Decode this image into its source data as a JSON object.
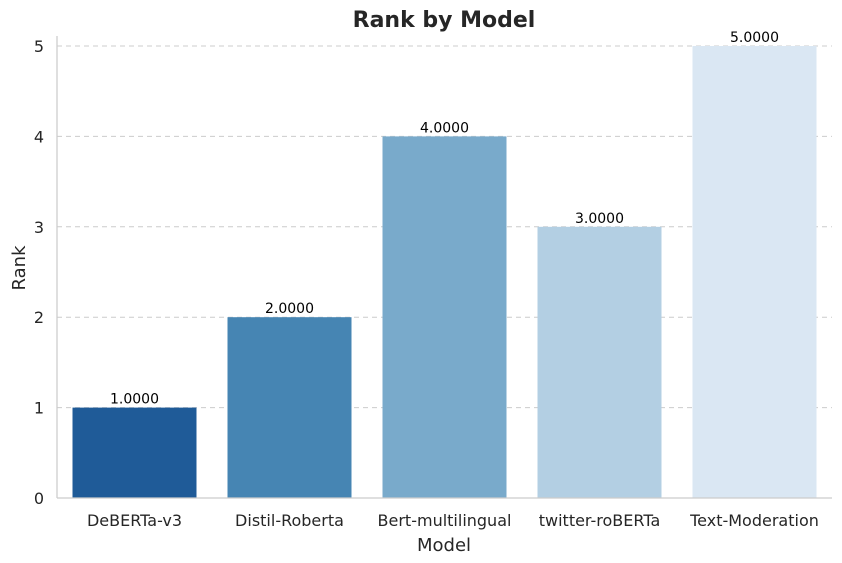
{
  "chart_data": {
    "type": "bar",
    "title": "Rank by Model",
    "xlabel": "Model",
    "ylabel": "Rank",
    "categories": [
      "DeBERTa-v3",
      "Distil-Roberta",
      "Bert-multilingual",
      "twitter-roBERTa",
      "Text-Moderation"
    ],
    "values": [
      1,
      2,
      4,
      3,
      5
    ],
    "data_labels": [
      "1.0000",
      "2.0000",
      "4.0000",
      "3.0000",
      "5.0000"
    ],
    "yticks": [
      0,
      1,
      2,
      3,
      4,
      5
    ],
    "ylim": [
      0,
      5.12
    ],
    "grid": true,
    "colors": [
      "#1f5b98",
      "#4685b3",
      "#79aacb",
      "#b3cfe3",
      "#dae7f3"
    ]
  }
}
